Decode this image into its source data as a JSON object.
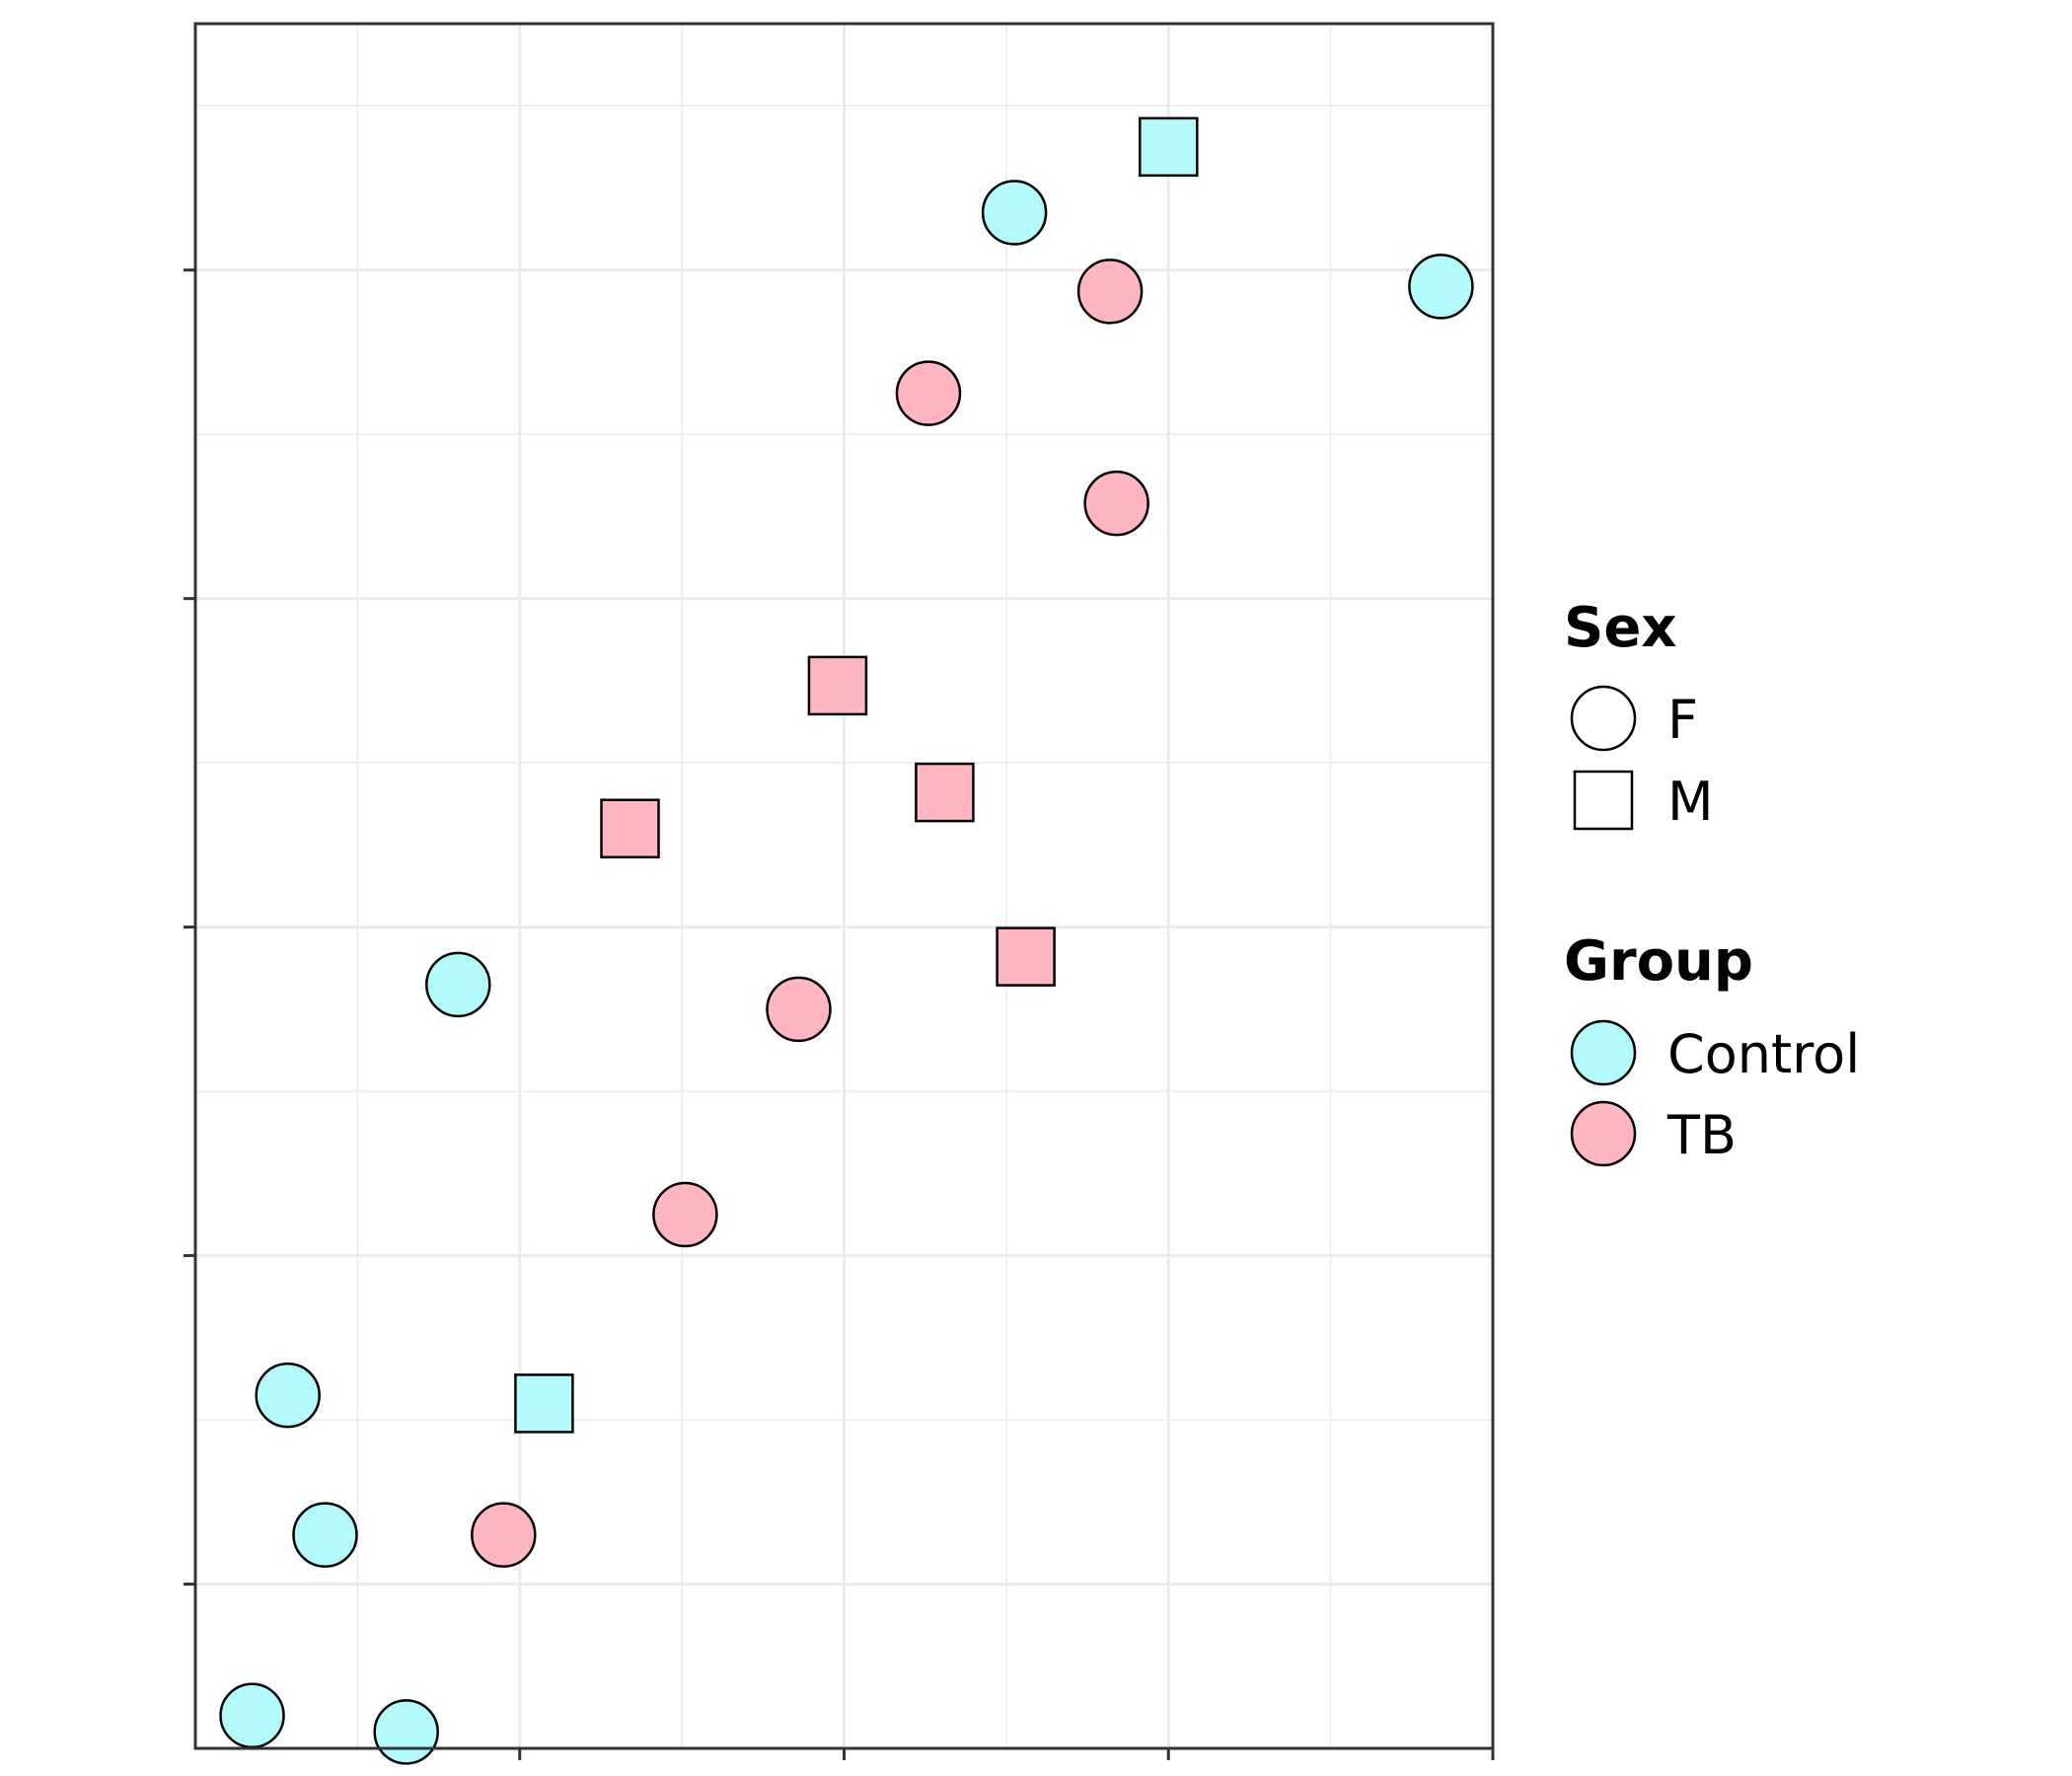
{
  "chart_data": {
    "type": "scatter",
    "title": "",
    "xlabel": "",
    "ylabel": "",
    "xlim": [
      0,
      8
    ],
    "ylim": [
      0,
      10.5
    ],
    "x_major_ticks": [
      2,
      4,
      6,
      8
    ],
    "x_minor_ticks": [
      1,
      3,
      5,
      7
    ],
    "y_major_ticks": [
      1,
      3,
      5,
      7,
      9
    ],
    "y_minor_ticks": [
      0,
      2,
      4,
      6,
      8,
      10
    ],
    "grid": true,
    "legend_position": "right",
    "colors": {
      "Control": "#b3fbfb",
      "TB": "#ffb6c1",
      "stroke": "#000000",
      "grid": "#ebebeb",
      "panel_border": "#333333"
    },
    "legend": {
      "shape": {
        "title": "Sex",
        "entries": [
          {
            "label": "F",
            "shape": "circle"
          },
          {
            "label": "M",
            "shape": "square"
          }
        ]
      },
      "fill": {
        "title": "Group",
        "entries": [
          {
            "label": "Control",
            "color": "#b3fbfb"
          },
          {
            "label": "TB",
            "color": "#ffb6c1"
          }
        ]
      }
    },
    "points": [
      {
        "x": 0.35,
        "y": 0.2,
        "sex": "F",
        "group": "Control"
      },
      {
        "x": 1.3,
        "y": 0.1,
        "sex": "F",
        "group": "Control"
      },
      {
        "x": 0.8,
        "y": 1.3,
        "sex": "F",
        "group": "Control"
      },
      {
        "x": 0.57,
        "y": 2.15,
        "sex": "F",
        "group": "Control"
      },
      {
        "x": 2.15,
        "y": 2.1,
        "sex": "M",
        "group": "Control"
      },
      {
        "x": 1.62,
        "y": 4.65,
        "sex": "F",
        "group": "Control"
      },
      {
        "x": 5.05,
        "y": 9.35,
        "sex": "F",
        "group": "Control"
      },
      {
        "x": 6.0,
        "y": 9.75,
        "sex": "M",
        "group": "Control"
      },
      {
        "x": 7.68,
        "y": 8.9,
        "sex": "F",
        "group": "Control"
      },
      {
        "x": 1.9,
        "y": 1.3,
        "sex": "F",
        "group": "TB"
      },
      {
        "x": 3.02,
        "y": 3.25,
        "sex": "F",
        "group": "TB"
      },
      {
        "x": 3.72,
        "y": 4.5,
        "sex": "F",
        "group": "TB"
      },
      {
        "x": 4.52,
        "y": 8.25,
        "sex": "F",
        "group": "TB"
      },
      {
        "x": 5.68,
        "y": 7.58,
        "sex": "F",
        "group": "TB"
      },
      {
        "x": 5.64,
        "y": 8.87,
        "sex": "F",
        "group": "TB"
      },
      {
        "x": 2.68,
        "y": 5.6,
        "sex": "M",
        "group": "TB"
      },
      {
        "x": 3.96,
        "y": 6.47,
        "sex": "M",
        "group": "TB"
      },
      {
        "x": 4.62,
        "y": 5.82,
        "sex": "M",
        "group": "TB"
      },
      {
        "x": 5.12,
        "y": 4.82,
        "sex": "M",
        "group": "TB"
      }
    ]
  }
}
